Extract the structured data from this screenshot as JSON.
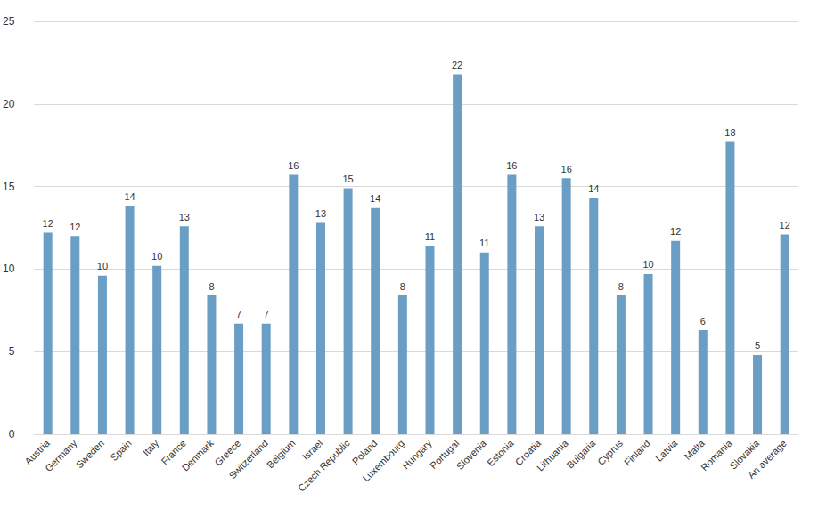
{
  "chart_data": {
    "type": "bar",
    "categories": [
      "Austria",
      "Germany",
      "Sweden",
      "Spain",
      "Italy",
      "France",
      "Denmark",
      "Greece",
      "Switzerland",
      "Belgium",
      "Israel",
      "Czech Republic",
      "Poland",
      "Luxembourg",
      "Hungary",
      "Portugal",
      "Slovenia",
      "Estonia",
      "Croatia",
      "Lithuania",
      "Bulgaria",
      "Cyprus",
      "Finland",
      "Latvia",
      "Malta",
      "Romania",
      "Slovakia",
      "An average"
    ],
    "values": [
      12.2,
      12.0,
      9.6,
      13.8,
      10.2,
      12.6,
      8.4,
      6.7,
      6.7,
      15.7,
      12.8,
      14.9,
      13.7,
      8.4,
      11.4,
      21.8,
      11.0,
      15.7,
      12.6,
      15.5,
      14.3,
      8.4,
      9.7,
      11.7,
      6.3,
      17.7,
      4.8,
      12.1
    ],
    "value_labels": [
      "12",
      "12",
      "10",
      "14",
      "10",
      "13",
      "8",
      "7",
      "7",
      "16",
      "13",
      "15",
      "14",
      "8",
      "11",
      "22",
      "11",
      "16",
      "13",
      "16",
      "14",
      "8",
      "10",
      "12",
      "6",
      "18",
      "5",
      "12"
    ],
    "color": "#6a9ec5",
    "ylim": [
      0,
      25
    ],
    "yticks": [
      0,
      5,
      10,
      15,
      20,
      25
    ],
    "grid": true,
    "data_labels": true
  }
}
